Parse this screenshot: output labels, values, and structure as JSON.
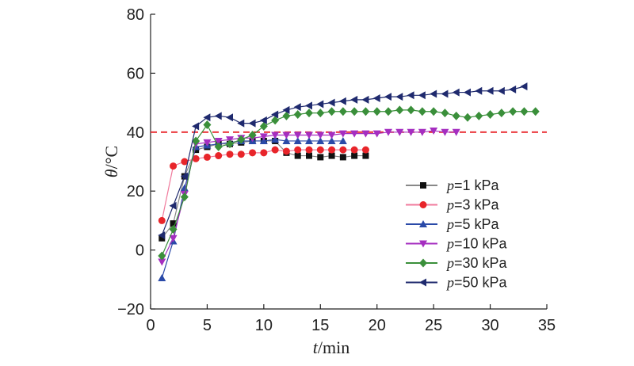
{
  "chart_data": {
    "type": "line",
    "xlabel": {
      "var": "t",
      "unit": "/min"
    },
    "ylabel": {
      "var": "θ",
      "unit": "/°C"
    },
    "xlim": [
      0,
      35
    ],
    "ylim": [
      -20,
      80
    ],
    "xticks": [
      0,
      5,
      10,
      15,
      20,
      25,
      30,
      35
    ],
    "yticks": [
      -20,
      0,
      20,
      40,
      60,
      80
    ],
    "grid": false,
    "legend_position": "center-right",
    "reference_line": {
      "y": 40,
      "style": "dashed",
      "color": "#e8252a"
    },
    "series": [
      {
        "name": "p=1 kPa",
        "label_var": "p",
        "label_rest": "=1 kPa",
        "marker": "square",
        "color": "#111111",
        "line_color": "#888888",
        "x": [
          1,
          2,
          3,
          4,
          5,
          6,
          7,
          8,
          9,
          10,
          11,
          12,
          13,
          14,
          15,
          16,
          17,
          18,
          19
        ],
        "y": [
          4,
          9,
          25,
          34,
          35,
          36,
          36,
          36.5,
          37,
          37,
          37,
          33,
          32,
          32,
          31.5,
          32,
          31.5,
          32,
          32
        ]
      },
      {
        "name": "p=3 kPa",
        "label_var": "p",
        "label_rest": "=3 kPa",
        "marker": "circle",
        "color": "#e8252a",
        "line_color": "#f07a9c",
        "x": [
          1,
          2,
          3,
          4,
          5,
          6,
          7,
          8,
          9,
          10,
          11,
          12,
          13,
          14,
          15,
          16,
          17,
          18,
          19
        ],
        "y": [
          10,
          28.5,
          30,
          31,
          31.5,
          32,
          32.5,
          32.5,
          33,
          33,
          34,
          33.5,
          34,
          34,
          34,
          34,
          34,
          34,
          34
        ]
      },
      {
        "name": "p=5 kPa",
        "label_var": "p",
        "label_rest": "=5 kPa",
        "marker": "triangle-up",
        "color": "#2a4aa8",
        "line_color": "#2a4aa8",
        "x": [
          1,
          2,
          3,
          4,
          5,
          6,
          7,
          8,
          9,
          10,
          11,
          12,
          13,
          14,
          15,
          16,
          17
        ],
        "y": [
          -9.5,
          3,
          21,
          35,
          35.5,
          36,
          36.5,
          37,
          37,
          37,
          37.5,
          37,
          37,
          37,
          37,
          37,
          37
        ]
      },
      {
        "name": "p=10 kPa",
        "label_var": "p",
        "label_rest": "=10 kPa",
        "marker": "triangle-down",
        "color": "#a52ec0",
        "line_color": "#a52ec0",
        "x": [
          1,
          2,
          3,
          4,
          5,
          6,
          7,
          8,
          9,
          10,
          11,
          12,
          13,
          14,
          15,
          16,
          17,
          18,
          19,
          20,
          21,
          22,
          23,
          24,
          25,
          26,
          27
        ],
        "y": [
          -4,
          4,
          19,
          36,
          36.5,
          37,
          37.5,
          38,
          38,
          38.5,
          39,
          39,
          39,
          39,
          39,
          39,
          39.5,
          39.5,
          39.5,
          39.5,
          40,
          40,
          40,
          40,
          40.5,
          40,
          40
        ]
      },
      {
        "name": "p=30 kPa",
        "label_var": "p",
        "label_rest": "=30 kPa",
        "marker": "diamond",
        "color": "#3a8f3a",
        "line_color": "#3a8f3a",
        "x": [
          1,
          2,
          3,
          4,
          5,
          6,
          7,
          8,
          9,
          10,
          11,
          12,
          13,
          14,
          15,
          16,
          17,
          18,
          19,
          20,
          21,
          22,
          23,
          24,
          25,
          26,
          27,
          28,
          29,
          30,
          31,
          32,
          33,
          34
        ],
        "y": [
          -2,
          7,
          18,
          37,
          42.5,
          35,
          36,
          37.5,
          39,
          42,
          44,
          45.5,
          46,
          46.5,
          46.5,
          47,
          47,
          47,
          47,
          47,
          47,
          47.5,
          47.5,
          47,
          47,
          46.5,
          45.5,
          45,
          45.5,
          46,
          46.5,
          47,
          47,
          47
        ]
      },
      {
        "name": "p=50 kPa",
        "label_var": "p",
        "label_rest": "=50 kPa",
        "marker": "triangle-left",
        "color": "#1f2a6e",
        "line_color": "#1f2a6e",
        "x": [
          1,
          2,
          3,
          4,
          5,
          6,
          7,
          8,
          9,
          10,
          11,
          12,
          13,
          14,
          15,
          16,
          17,
          18,
          19,
          20,
          21,
          22,
          23,
          24,
          25,
          26,
          27,
          28,
          29,
          30,
          31,
          32,
          33
        ],
        "y": [
          5,
          15,
          25,
          42,
          45,
          45.5,
          45,
          43,
          43,
          44,
          46,
          47.5,
          48.5,
          49,
          49.5,
          50,
          50.5,
          51,
          51,
          51.5,
          52,
          52,
          52.5,
          52.5,
          53,
          53,
          53.5,
          53.5,
          54,
          54,
          54,
          54.5,
          55.5
        ]
      }
    ]
  }
}
